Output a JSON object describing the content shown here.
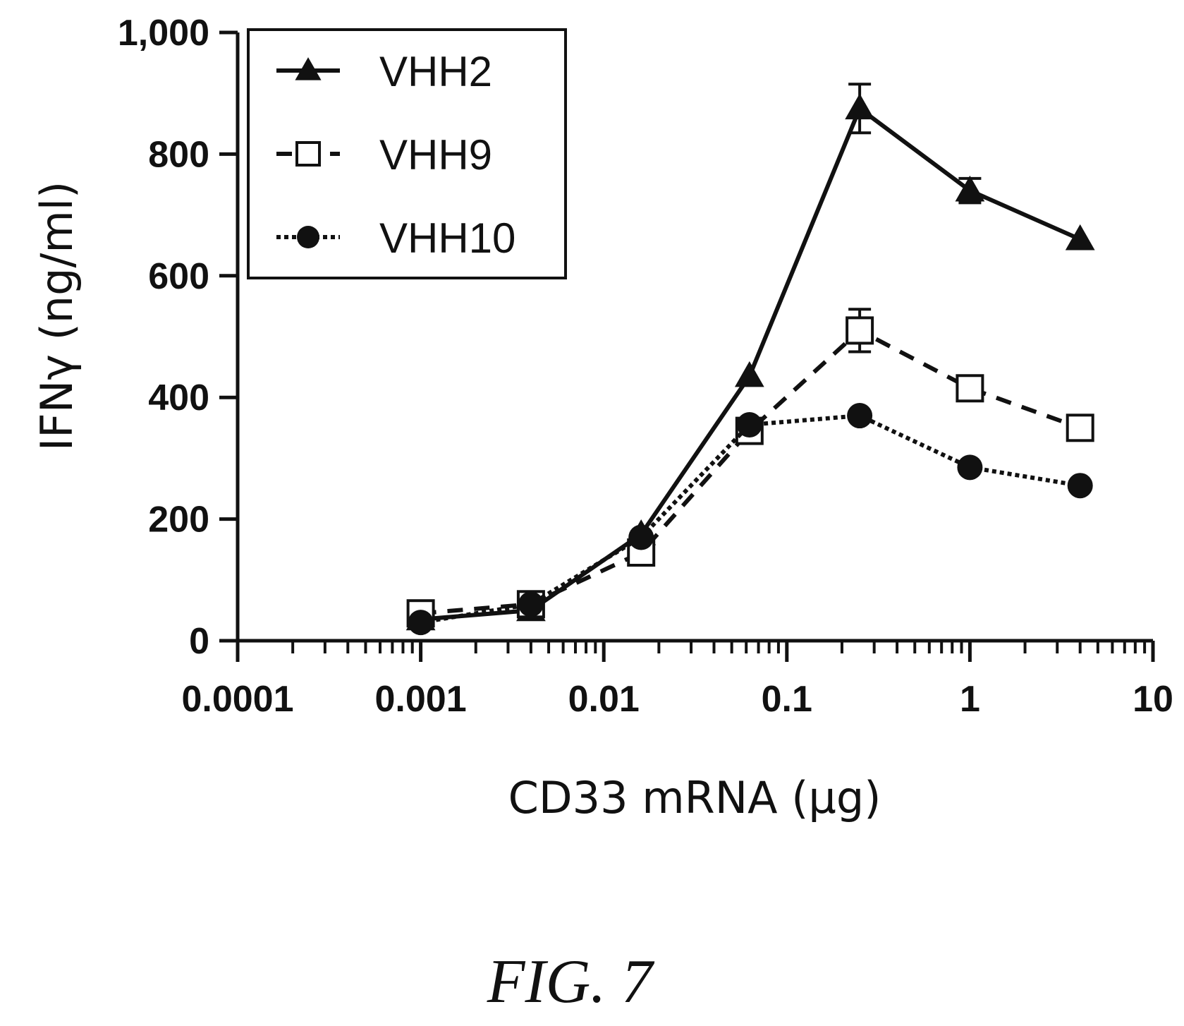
{
  "chart_data": {
    "type": "line",
    "title": "",
    "xlabel": "CD33 mRNA (µg)",
    "ylabel": "IFNγ (ng/ml)",
    "x_scale": "log",
    "xlim": [
      0.0001,
      10
    ],
    "ylim": [
      0,
      1000
    ],
    "x_ticks": [
      {
        "value": 0.0001,
        "label": "0.0001"
      },
      {
        "value": 0.001,
        "label": "0.001"
      },
      {
        "value": 0.01,
        "label": "0.01"
      },
      {
        "value": 0.1,
        "label": "0.1"
      },
      {
        "value": 1,
        "label": "1"
      },
      {
        "value": 10,
        "label": "10"
      }
    ],
    "y_ticks": [
      {
        "value": 0,
        "label": "0"
      },
      {
        "value": 200,
        "label": "200"
      },
      {
        "value": 400,
        "label": "400"
      },
      {
        "value": 600,
        "label": "600"
      },
      {
        "value": 800,
        "label": "800"
      },
      {
        "value": 1000,
        "label": "1,000"
      }
    ],
    "grid": false,
    "legend_position": "top-left",
    "x": [
      0.001,
      0.004,
      0.016,
      0.0625,
      0.25,
      1,
      4
    ],
    "series": [
      {
        "name": "VHH2",
        "marker": "triangle",
        "line_style": "solid",
        "values": [
          35,
          50,
          175,
          435,
          875,
          740,
          660
        ],
        "errors": [
          0,
          0,
          0,
          0,
          40,
          20,
          0
        ]
      },
      {
        "name": "VHH9",
        "marker": "open-square",
        "line_style": "dashed",
        "values": [
          45,
          60,
          145,
          345,
          510,
          415,
          350
        ],
        "errors": [
          0,
          0,
          0,
          0,
          35,
          0,
          0
        ]
      },
      {
        "name": "VHH10",
        "marker": "circle",
        "line_style": "dotted",
        "values": [
          30,
          60,
          170,
          355,
          370,
          285,
          255
        ],
        "errors": [
          0,
          0,
          0,
          0,
          0,
          0,
          0
        ]
      }
    ],
    "colors": {
      "ink": "#111111",
      "background": "#ffffff"
    }
  },
  "caption": "FIG. 7"
}
